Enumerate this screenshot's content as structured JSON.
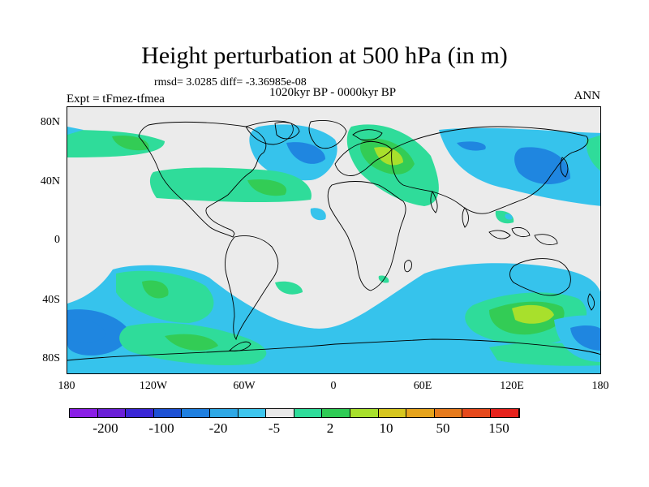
{
  "title": "Height perturbation at 500 hPa (in m)",
  "stats": "rmsd= 3.0285 diff= -3.36985e-08",
  "period": "1020kyr BP - 0000kyr BP",
  "experiment": "Expt = tFmez-tfmea",
  "season": "ANN",
  "lat_ticks": [
    "80N",
    "40N",
    "0",
    "40S",
    "80S"
  ],
  "lon_ticks": [
    "180",
    "120W",
    "60W",
    "0",
    "60E",
    "120E",
    "180"
  ],
  "colorbar": {
    "colors": [
      "#8a1ee6",
      "#6a1fd8",
      "#3a26d6",
      "#1c50d4",
      "#1f7fe0",
      "#2ea8e6",
      "#3ec6ee",
      "#e8e8e8",
      "#2fdc9a",
      "#2fcc55",
      "#a8e02c",
      "#d6c61e",
      "#e6a31c",
      "#e67a1c",
      "#e6491c",
      "#e6221c"
    ],
    "labels": [
      "-200",
      "-100",
      "-20",
      "-5",
      "2",
      "10",
      "50",
      "150"
    ]
  },
  "field_colors": {
    "blue_light": "#36c3ec",
    "blue_mid": "#1f86e0",
    "green_light": "#2fdc9a",
    "green_mid": "#33cc55",
    "yellow_green": "#a8e02c",
    "background": "#ebebeb"
  }
}
